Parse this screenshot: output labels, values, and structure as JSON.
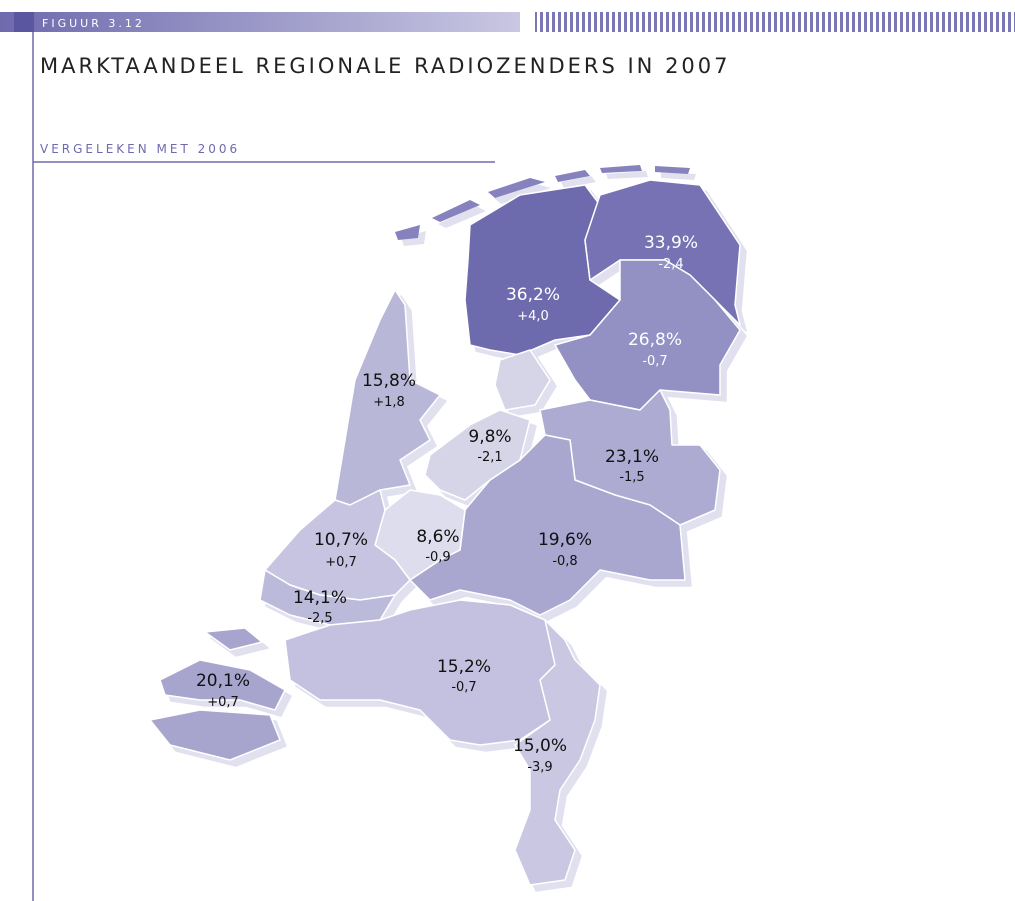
{
  "header": {
    "figure": "FIGUUR 3.12",
    "title": "MARKTAANDEEL REGIONALE RADIOZENDERS IN 2007",
    "subtitle": "VERGELEKEN MET 2006"
  },
  "map": {
    "regions": [
      {
        "share": "36,2%",
        "change": "+4,0",
        "color": "#6e6aae"
      },
      {
        "share": "33,9%",
        "change": "-2,4",
        "color": "#7672b4"
      },
      {
        "share": "26,8%",
        "change": "-0,7",
        "color": "#9390c4"
      },
      {
        "share": "15,8%",
        "change": "+1,8",
        "color": "#b9b7d8"
      },
      {
        "share": "9,8%",
        "change": "-2,1",
        "color": "#d6d5e8"
      },
      {
        "share": "23,1%",
        "change": "-1,5",
        "color": "#aeabd2"
      },
      {
        "share": "10,7%",
        "change": "+0,7",
        "color": "#c6c4e0"
      },
      {
        "share": "8,6%",
        "change": "-0,9",
        "color": "#dedded"
      },
      {
        "share": "19,6%",
        "change": "-0,8",
        "color": "#a9a6cf"
      },
      {
        "share": "14,1%",
        "change": "-2,5",
        "color": "#bcbadb"
      },
      {
        "share": "15,2%",
        "change": "-0,7",
        "color": "#c3c1df"
      },
      {
        "share": "20,1%",
        "change": "+0,7",
        "color": "#a7a4ce"
      },
      {
        "share": "15,0%",
        "change": "-3,9",
        "color": "#c9c7e2"
      }
    ]
  }
}
